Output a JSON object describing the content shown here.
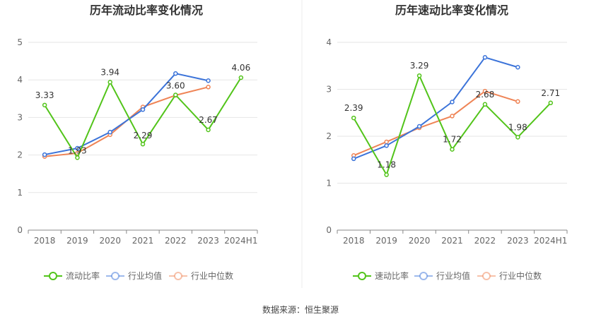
{
  "source_label": "数据来源：恒生聚源",
  "chart_data": [
    {
      "type": "line",
      "title": "历年流动比率变化情况",
      "categories": [
        "2018",
        "2019",
        "2020",
        "2021",
        "2022",
        "2023",
        "2024H1"
      ],
      "ylim": [
        0,
        5
      ],
      "yticks": [
        "0",
        "1",
        "2",
        "3",
        "4",
        "5"
      ],
      "grid": true,
      "legend_position": "bottom",
      "series": [
        {
          "name": "流动比率",
          "color": "#52c41a",
          "values": [
            3.33,
            1.93,
            3.94,
            2.29,
            3.6,
            2.67,
            4.06
          ],
          "labels": [
            "3.33",
            "1.93",
            "3.94",
            "2.29",
            "3.60",
            "2.67",
            "4.06"
          ]
        },
        {
          "name": "行业均值",
          "color": "#3b73d9",
          "values": [
            2.01,
            2.18,
            2.61,
            3.21,
            4.17,
            3.98,
            null
          ]
        },
        {
          "name": "行业中位数",
          "color": "#ef8456",
          "values": [
            1.96,
            2.05,
            2.54,
            3.28,
            3.59,
            3.81,
            null
          ]
        }
      ]
    },
    {
      "type": "line",
      "title": "历年速动比率变化情况",
      "categories": [
        "2018",
        "2019",
        "2020",
        "2021",
        "2022",
        "2023",
        "2024H1"
      ],
      "ylim": [
        0,
        4
      ],
      "yticks": [
        "0",
        "1",
        "2",
        "3",
        "4"
      ],
      "grid": true,
      "legend_position": "bottom",
      "series": [
        {
          "name": "速动比率",
          "color": "#52c41a",
          "values": [
            2.39,
            1.18,
            3.29,
            1.72,
            2.68,
            1.98,
            2.71
          ],
          "labels": [
            "2.39",
            "1.18",
            "3.29",
            "1.72",
            "2.68",
            "1.98",
            "2.71"
          ]
        },
        {
          "name": "行业均值",
          "color": "#3b73d9",
          "values": [
            1.52,
            1.8,
            2.21,
            2.73,
            3.68,
            3.47,
            null
          ]
        },
        {
          "name": "行业中位数",
          "color": "#ef8456",
          "values": [
            1.59,
            1.88,
            2.18,
            2.43,
            2.96,
            2.74,
            null
          ]
        }
      ]
    }
  ]
}
